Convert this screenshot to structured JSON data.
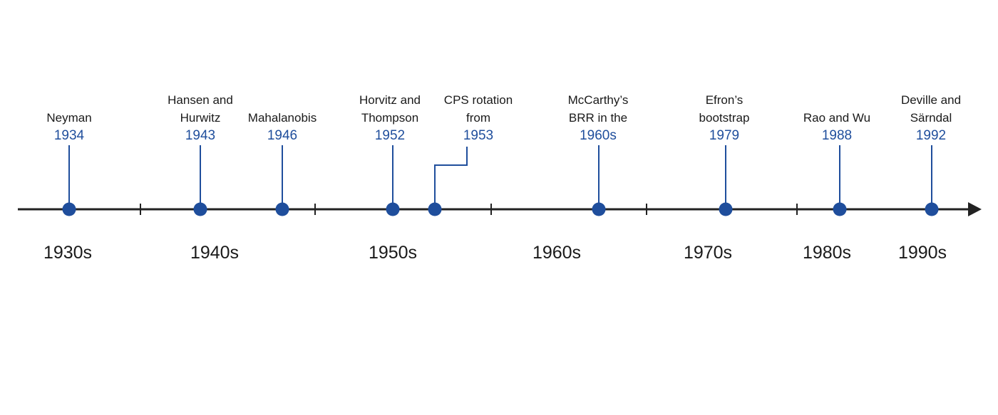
{
  "colors": {
    "axis": "#222222",
    "marker": "#1f4e9c",
    "leader": "#1f4e9c",
    "year_text": "#1f4e9c",
    "label_text": "#1a1a1a"
  },
  "events": [
    {
      "id": "neyman",
      "label_lines": [
        "Neyman"
      ],
      "year": "1934"
    },
    {
      "id": "hansen-hurwitz",
      "label_lines": [
        "Hansen and",
        "Hurwitz"
      ],
      "year": "1943"
    },
    {
      "id": "mahalanobis",
      "label_lines": [
        "Mahalanobis"
      ],
      "year": "1946"
    },
    {
      "id": "horvitz-thompson",
      "label_lines": [
        "Horvitz and",
        "Thompson"
      ],
      "year": "1952"
    },
    {
      "id": "cps-rotation",
      "label_lines": [
        "CPS rotation",
        "from"
      ],
      "year": "1953"
    },
    {
      "id": "mccarthy-brr",
      "label_lines": [
        "McCarthy’s",
        "BRR in the"
      ],
      "year": "1960s"
    },
    {
      "id": "efron-bootstrap",
      "label_lines": [
        "Efron’s",
        "bootstrap"
      ],
      "year": "1979"
    },
    {
      "id": "rao-wu",
      "label_lines": [
        "Rao and Wu"
      ],
      "year": "1988"
    },
    {
      "id": "deville-sarndal",
      "label_lines": [
        "Deville and",
        "Särndal"
      ],
      "year": "1992"
    }
  ],
  "decades": [
    "1930s",
    "1940s",
    "1950s",
    "1960s",
    "1970s",
    "1980s",
    "1990s"
  ]
}
